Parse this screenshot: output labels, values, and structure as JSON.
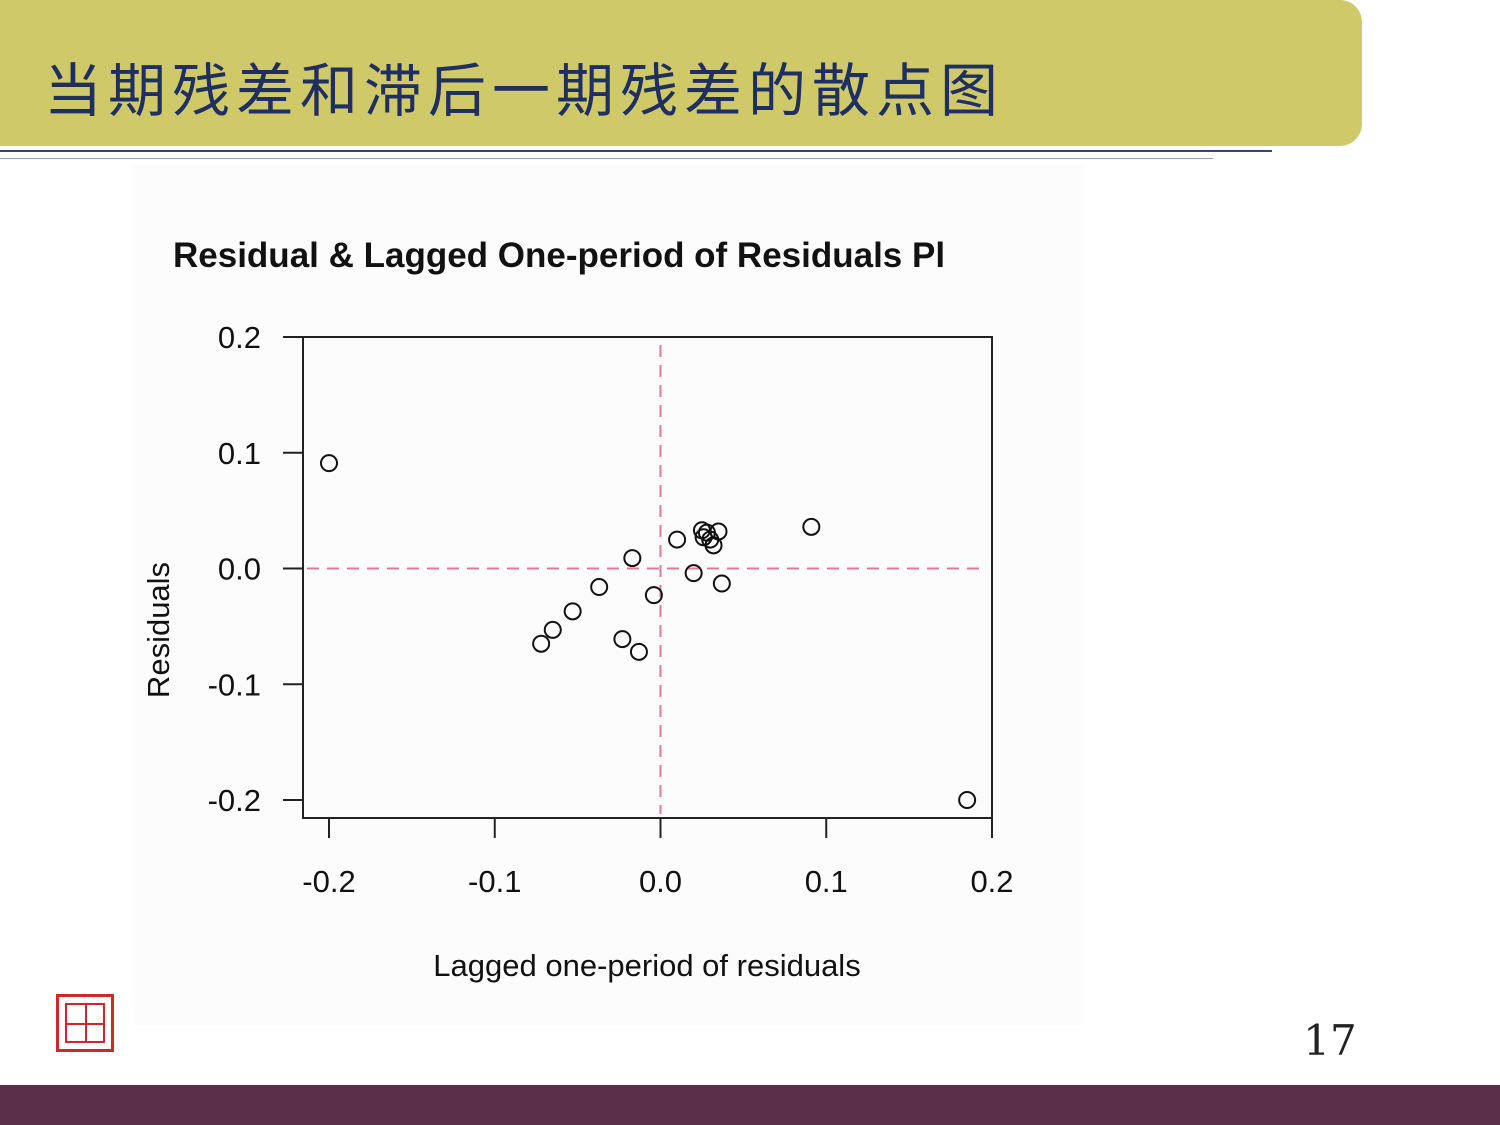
{
  "slide": {
    "title": "当期残差和滞后一期残差的散点图",
    "page_number": "17",
    "colors": {
      "banner": "#cfc96a",
      "title_text": "#1f2f5f",
      "footer": "#5b2e49",
      "reference_line": "#e07a92",
      "seal": "#cc2a2a"
    },
    "icons": {
      "seal": "red-seal-stamp-icon"
    }
  },
  "chart_data": {
    "type": "scatter",
    "title": "Residual & Lagged One-period of Residuals Pl",
    "xlabel": "Lagged one-period of residuals",
    "ylabel": "Residuals",
    "xlim": [
      -0.2,
      0.2
    ],
    "ylim": [
      -0.2,
      0.2
    ],
    "x_ticks": [
      "-0.2",
      "-0.1",
      "0.0",
      "0.1",
      "0.2"
    ],
    "y_ticks": [
      "0.2",
      "0.1",
      "0.0",
      "-0.1",
      "-0.2"
    ],
    "x_tick_values": [
      -0.2,
      -0.1,
      0.0,
      0.1,
      0.2
    ],
    "y_tick_values": [
      0.2,
      0.1,
      0.0,
      -0.1,
      -0.2
    ],
    "reference_lines": {
      "x": 0,
      "y": 0,
      "style": "dashed"
    },
    "grid": false,
    "marker": "open-circle",
    "points": [
      {
        "x": -0.2,
        "y": 0.091
      },
      {
        "x": -0.072,
        "y": -0.065
      },
      {
        "x": -0.065,
        "y": -0.053
      },
      {
        "x": -0.053,
        "y": -0.037
      },
      {
        "x": -0.037,
        "y": -0.016
      },
      {
        "x": -0.023,
        "y": -0.061
      },
      {
        "x": -0.017,
        "y": 0.009
      },
      {
        "x": -0.013,
        "y": -0.072
      },
      {
        "x": -0.004,
        "y": -0.023
      },
      {
        "x": 0.01,
        "y": 0.025
      },
      {
        "x": 0.02,
        "y": -0.004
      },
      {
        "x": 0.025,
        "y": 0.033
      },
      {
        "x": 0.026,
        "y": 0.027
      },
      {
        "x": 0.028,
        "y": 0.031
      },
      {
        "x": 0.03,
        "y": 0.025
      },
      {
        "x": 0.032,
        "y": 0.02
      },
      {
        "x": 0.035,
        "y": 0.032
      },
      {
        "x": 0.037,
        "y": -0.013
      },
      {
        "x": 0.091,
        "y": 0.036
      },
      {
        "x": 0.185,
        "y": -0.2
      }
    ]
  }
}
